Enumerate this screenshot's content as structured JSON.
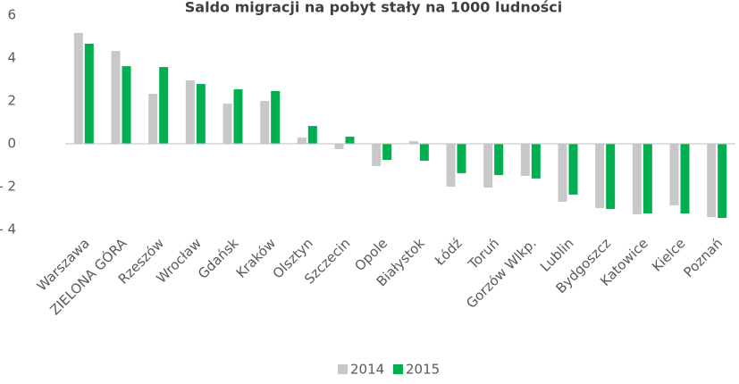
{
  "chart_data": {
    "type": "bar",
    "title": "Saldo migracji na pobyt stały na 1000 ludności",
    "categories": [
      "Warszawa",
      "ZIELONA GÓRA",
      "Rzeszów",
      "Wrocław",
      "Gdańsk",
      "Kraków",
      "Olsztyn",
      "Szczecin",
      "Opole",
      "Białystok",
      "Łódź",
      "Toruń",
      "Gorzów Wlkp.",
      "Lublin",
      "Bydgoszcz",
      "Katowice",
      "Kielce",
      "Poznań"
    ],
    "series": [
      {
        "name": "2014",
        "color": "#c8c8c8",
        "values": [
          5.17,
          4.33,
          2.33,
          2.96,
          1.87,
          2.0,
          0.29,
          -0.25,
          -1.04,
          0.12,
          -2.0,
          -2.04,
          -1.5,
          -2.71,
          -3.0,
          -3.29,
          -2.87,
          -3.42
        ]
      },
      {
        "name": "2015",
        "color": "#00b050",
        "values": [
          4.67,
          3.62,
          3.58,
          2.79,
          2.54,
          2.46,
          0.83,
          0.33,
          -0.75,
          -0.79,
          -1.37,
          -1.46,
          -1.62,
          -2.37,
          -3.04,
          -3.25,
          -3.25,
          -3.46
        ]
      }
    ],
    "ylim": [
      -4,
      6
    ],
    "yticks": [
      6,
      4,
      2,
      0,
      {
        "value": -2,
        "label": "- 2"
      },
      {
        "value": -4,
        "label": "- 4"
      }
    ],
    "grid": false,
    "legend": "bottom"
  }
}
